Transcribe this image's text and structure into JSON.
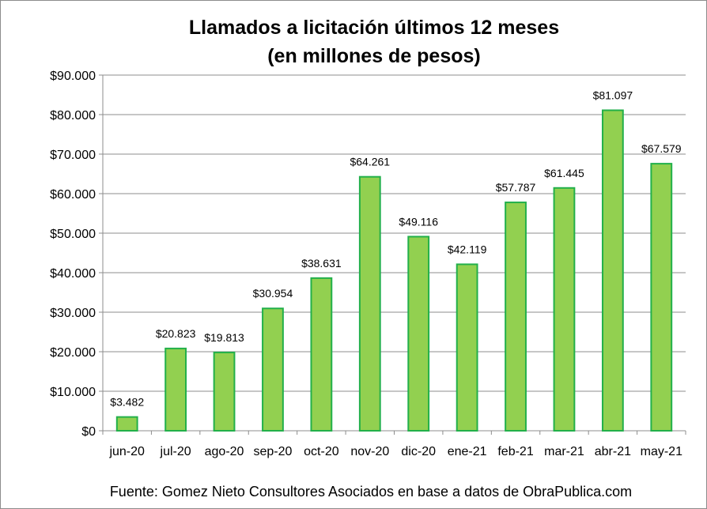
{
  "chart_data": {
    "type": "bar",
    "title_line1": "Llamados a licitación últimos 12 meses",
    "title_line2": "(en millones de pesos)",
    "categories": [
      "jun-20",
      "jul-20",
      "ago-20",
      "sep-20",
      "oct-20",
      "nov-20",
      "dic-20",
      "ene-21",
      "feb-21",
      "mar-21",
      "abr-21",
      "may-21"
    ],
    "values": [
      3482,
      20823,
      19813,
      30954,
      38631,
      64261,
      49116,
      42119,
      57787,
      61445,
      81097,
      67579
    ],
    "value_labels": [
      "$3.482",
      "$20.823",
      "$19.813",
      "$30.954",
      "$38.631",
      "$64.261",
      "$49.116",
      "$42.119",
      "$57.787",
      "$61.445",
      "$81.097",
      "$67.579"
    ],
    "ylim": [
      0,
      90000
    ],
    "y_ticks": [
      0,
      10000,
      20000,
      30000,
      40000,
      50000,
      60000,
      70000,
      80000,
      90000
    ],
    "y_tick_labels": [
      "$0",
      "$10.000",
      "$20.000",
      "$30.000",
      "$40.000",
      "$50.000",
      "$60.000",
      "$70.000",
      "$80.000",
      "$90.000"
    ],
    "grid": true,
    "legend": "none",
    "bar_fill": "#92d050",
    "bar_stroke": "#22b04a",
    "gridline_color": "#8c8c8c"
  },
  "source_note": "Fuente: Gomez Nieto Consultores Asociados en base a datos de ObraPublica.com"
}
